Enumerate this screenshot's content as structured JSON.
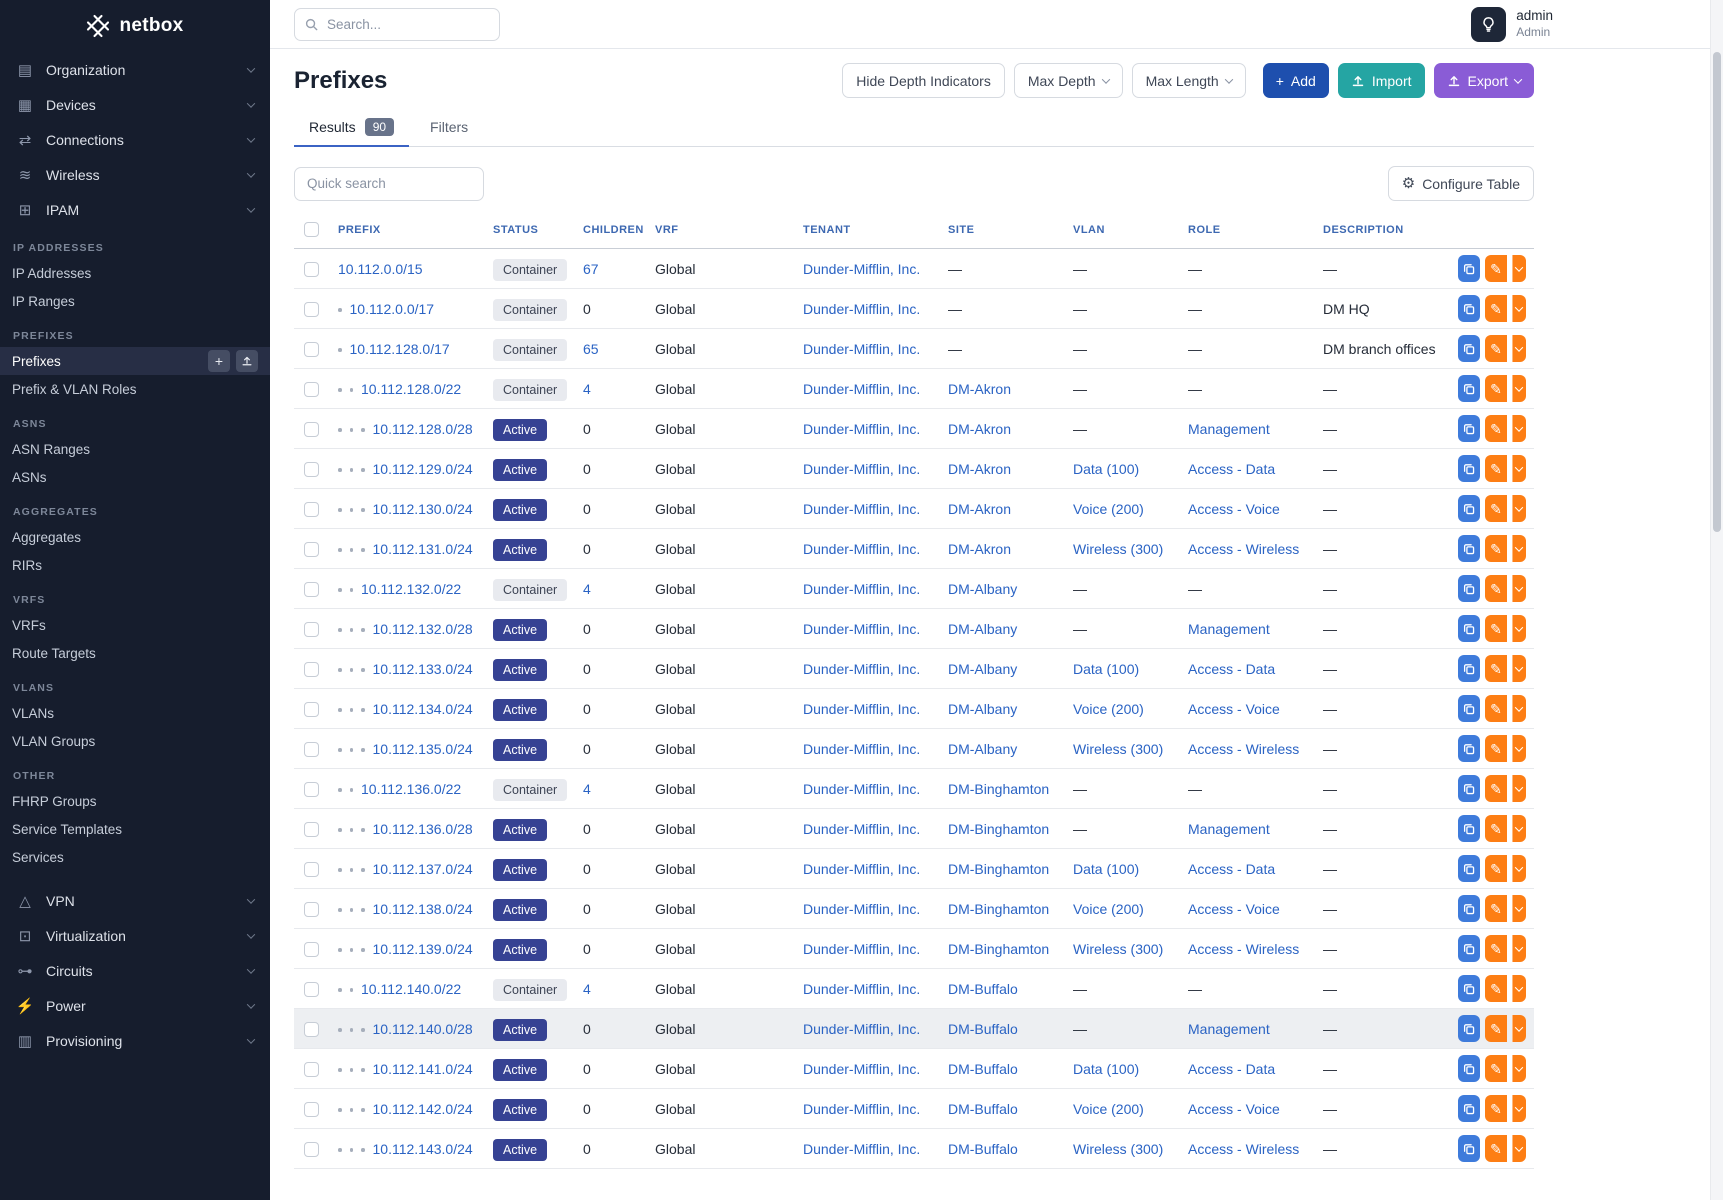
{
  "brand": {
    "name": "netbox"
  },
  "topbar": {
    "search_placeholder": "Search...",
    "user_name": "admin",
    "user_role": "Admin"
  },
  "sidebar": {
    "top_items": [
      {
        "label": "Organization",
        "icon": "organization-icon"
      },
      {
        "label": "Devices",
        "icon": "devices-icon"
      },
      {
        "label": "Connections",
        "icon": "connections-icon"
      },
      {
        "label": "Wireless",
        "icon": "wireless-icon"
      },
      {
        "label": "IPAM",
        "icon": "ipam-icon"
      }
    ],
    "sections": [
      {
        "heading": "IP ADDRESSES",
        "items": [
          {
            "label": "IP Addresses"
          },
          {
            "label": "IP Ranges"
          }
        ]
      },
      {
        "heading": "PREFIXES",
        "items": [
          {
            "label": "Prefixes",
            "active": true
          },
          {
            "label": "Prefix & VLAN Roles"
          }
        ]
      },
      {
        "heading": "ASNS",
        "items": [
          {
            "label": "ASN Ranges"
          },
          {
            "label": "ASNs"
          }
        ]
      },
      {
        "heading": "AGGREGATES",
        "items": [
          {
            "label": "Aggregates"
          },
          {
            "label": "RIRs"
          }
        ]
      },
      {
        "heading": "VRFS",
        "items": [
          {
            "label": "VRFs"
          },
          {
            "label": "Route Targets"
          }
        ]
      },
      {
        "heading": "VLANS",
        "items": [
          {
            "label": "VLANs"
          },
          {
            "label": "VLAN Groups"
          }
        ]
      },
      {
        "heading": "OTHER",
        "items": [
          {
            "label": "FHRP Groups"
          },
          {
            "label": "Service Templates"
          },
          {
            "label": "Services"
          }
        ]
      }
    ],
    "bottom_items": [
      {
        "label": "VPN",
        "icon": "vpn-icon"
      },
      {
        "label": "Virtualization",
        "icon": "virtualization-icon"
      },
      {
        "label": "Circuits",
        "icon": "circuits-icon"
      },
      {
        "label": "Power",
        "icon": "power-icon"
      },
      {
        "label": "Provisioning",
        "icon": "provisioning-icon"
      }
    ],
    "icon_glyphs": {
      "organization-icon": "▤",
      "devices-icon": "▦",
      "connections-icon": "⇄",
      "wireless-icon": "≋",
      "ipam-icon": "⊞",
      "vpn-icon": "△",
      "virtualization-icon": "⊡",
      "circuits-icon": "⊶",
      "power-icon": "⚡",
      "provisioning-icon": "▥"
    }
  },
  "page": {
    "title": "Prefixes",
    "buttons": {
      "hide_depth": "Hide Depth Indicators",
      "max_depth": "Max Depth",
      "max_length": "Max Length",
      "add": "Add",
      "import": "Import",
      "export": "Export"
    },
    "tabs": {
      "results": "Results",
      "results_count": "90",
      "filters": "Filters"
    },
    "quick_search_placeholder": "Quick search",
    "configure_table": "Configure Table"
  },
  "colors": {
    "sidebar-bg": "#161d2d",
    "sidebar-active-bg": "#272e45",
    "add-blue": "#1e4fae",
    "import-teal": "#25a5a3",
    "export-purple": "#8a5cd6",
    "edit-orange": "#fd7e14",
    "copy-blue": "#3e7bdb",
    "badge-active": "#364293",
    "link": "#2a63c4",
    "header-link": "#3d68b1",
    "tab-underline": "#3b63c4",
    "count-badge": "#68738a"
  },
  "table": {
    "columns": [
      "PREFIX",
      "STATUS",
      "CHILDREN",
      "VRF",
      "TENANT",
      "SITE",
      "VLAN",
      "ROLE",
      "DESCRIPTION"
    ],
    "rows": [
      {
        "depth": 0,
        "prefix": "10.112.0.0/15",
        "status": "Container",
        "children": "67",
        "vrf": "Global",
        "tenant": "Dunder-Mifflin, Inc.",
        "site": "—",
        "vlan": "—",
        "role": "—",
        "description": "—"
      },
      {
        "depth": 1,
        "prefix": "10.112.0.0/17",
        "status": "Container",
        "children": "0",
        "vrf": "Global",
        "tenant": "Dunder-Mifflin, Inc.",
        "site": "—",
        "vlan": "—",
        "role": "—",
        "description": "DM HQ"
      },
      {
        "depth": 1,
        "prefix": "10.112.128.0/17",
        "status": "Container",
        "children": "65",
        "vrf": "Global",
        "tenant": "Dunder-Mifflin, Inc.",
        "site": "—",
        "vlan": "—",
        "role": "—",
        "description": "DM branch offices"
      },
      {
        "depth": 2,
        "prefix": "10.112.128.0/22",
        "status": "Container",
        "children": "4",
        "vrf": "Global",
        "tenant": "Dunder-Mifflin, Inc.",
        "site": "DM-Akron",
        "vlan": "—",
        "role": "—",
        "description": "—"
      },
      {
        "depth": 3,
        "prefix": "10.112.128.0/28",
        "status": "Active",
        "children": "0",
        "vrf": "Global",
        "tenant": "Dunder-Mifflin, Inc.",
        "site": "DM-Akron",
        "vlan": "—",
        "role": "Management",
        "description": "—"
      },
      {
        "depth": 3,
        "prefix": "10.112.129.0/24",
        "status": "Active",
        "children": "0",
        "vrf": "Global",
        "tenant": "Dunder-Mifflin, Inc.",
        "site": "DM-Akron",
        "vlan": "Data (100)",
        "role": "Access - Data",
        "description": "—"
      },
      {
        "depth": 3,
        "prefix": "10.112.130.0/24",
        "status": "Active",
        "children": "0",
        "vrf": "Global",
        "tenant": "Dunder-Mifflin, Inc.",
        "site": "DM-Akron",
        "vlan": "Voice (200)",
        "role": "Access - Voice",
        "description": "—"
      },
      {
        "depth": 3,
        "prefix": "10.112.131.0/24",
        "status": "Active",
        "children": "0",
        "vrf": "Global",
        "tenant": "Dunder-Mifflin, Inc.",
        "site": "DM-Akron",
        "vlan": "Wireless (300)",
        "role": "Access - Wireless",
        "description": "—"
      },
      {
        "depth": 2,
        "prefix": "10.112.132.0/22",
        "status": "Container",
        "children": "4",
        "vrf": "Global",
        "tenant": "Dunder-Mifflin, Inc.",
        "site": "DM-Albany",
        "vlan": "—",
        "role": "—",
        "description": "—"
      },
      {
        "depth": 3,
        "prefix": "10.112.132.0/28",
        "status": "Active",
        "children": "0",
        "vrf": "Global",
        "tenant": "Dunder-Mifflin, Inc.",
        "site": "DM-Albany",
        "vlan": "—",
        "role": "Management",
        "description": "—"
      },
      {
        "depth": 3,
        "prefix": "10.112.133.0/24",
        "status": "Active",
        "children": "0",
        "vrf": "Global",
        "tenant": "Dunder-Mifflin, Inc.",
        "site": "DM-Albany",
        "vlan": "Data (100)",
        "role": "Access - Data",
        "description": "—"
      },
      {
        "depth": 3,
        "prefix": "10.112.134.0/24",
        "status": "Active",
        "children": "0",
        "vrf": "Global",
        "tenant": "Dunder-Mifflin, Inc.",
        "site": "DM-Albany",
        "vlan": "Voice (200)",
        "role": "Access - Voice",
        "description": "—"
      },
      {
        "depth": 3,
        "prefix": "10.112.135.0/24",
        "status": "Active",
        "children": "0",
        "vrf": "Global",
        "tenant": "Dunder-Mifflin, Inc.",
        "site": "DM-Albany",
        "vlan": "Wireless (300)",
        "role": "Access - Wireless",
        "description": "—"
      },
      {
        "depth": 2,
        "prefix": "10.112.136.0/22",
        "status": "Container",
        "children": "4",
        "vrf": "Global",
        "tenant": "Dunder-Mifflin, Inc.",
        "site": "DM-Binghamton",
        "vlan": "—",
        "role": "—",
        "description": "—"
      },
      {
        "depth": 3,
        "prefix": "10.112.136.0/28",
        "status": "Active",
        "children": "0",
        "vrf": "Global",
        "tenant": "Dunder-Mifflin, Inc.",
        "site": "DM-Binghamton",
        "vlan": "—",
        "role": "Management",
        "description": "—"
      },
      {
        "depth": 3,
        "prefix": "10.112.137.0/24",
        "status": "Active",
        "children": "0",
        "vrf": "Global",
        "tenant": "Dunder-Mifflin, Inc.",
        "site": "DM-Binghamton",
        "vlan": "Data (100)",
        "role": "Access - Data",
        "description": "—"
      },
      {
        "depth": 3,
        "prefix": "10.112.138.0/24",
        "status": "Active",
        "children": "0",
        "vrf": "Global",
        "tenant": "Dunder-Mifflin, Inc.",
        "site": "DM-Binghamton",
        "vlan": "Voice (200)",
        "role": "Access - Voice",
        "description": "—"
      },
      {
        "depth": 3,
        "prefix": "10.112.139.0/24",
        "status": "Active",
        "children": "0",
        "vrf": "Global",
        "tenant": "Dunder-Mifflin, Inc.",
        "site": "DM-Binghamton",
        "vlan": "Wireless (300)",
        "role": "Access - Wireless",
        "description": "—"
      },
      {
        "depth": 2,
        "prefix": "10.112.140.0/22",
        "status": "Container",
        "children": "4",
        "vrf": "Global",
        "tenant": "Dunder-Mifflin, Inc.",
        "site": "DM-Buffalo",
        "vlan": "—",
        "role": "—",
        "description": "—"
      },
      {
        "depth": 3,
        "prefix": "10.112.140.0/28",
        "status": "Active",
        "children": "0",
        "vrf": "Global",
        "tenant": "Dunder-Mifflin, Inc.",
        "site": "DM-Buffalo",
        "vlan": "—",
        "role": "Management",
        "description": "—",
        "highlighted": true
      },
      {
        "depth": 3,
        "prefix": "10.112.141.0/24",
        "status": "Active",
        "children": "0",
        "vrf": "Global",
        "tenant": "Dunder-Mifflin, Inc.",
        "site": "DM-Buffalo",
        "vlan": "Data (100)",
        "role": "Access - Data",
        "description": "—"
      },
      {
        "depth": 3,
        "prefix": "10.112.142.0/24",
        "status": "Active",
        "children": "0",
        "vrf": "Global",
        "tenant": "Dunder-Mifflin, Inc.",
        "site": "DM-Buffalo",
        "vlan": "Voice (200)",
        "role": "Access - Voice",
        "description": "—"
      },
      {
        "depth": 3,
        "prefix": "10.112.143.0/24",
        "status": "Active",
        "children": "0",
        "vrf": "Global",
        "tenant": "Dunder-Mifflin, Inc.",
        "site": "DM-Buffalo",
        "vlan": "Wireless (300)",
        "role": "Access - Wireless",
        "description": "—"
      }
    ]
  }
}
